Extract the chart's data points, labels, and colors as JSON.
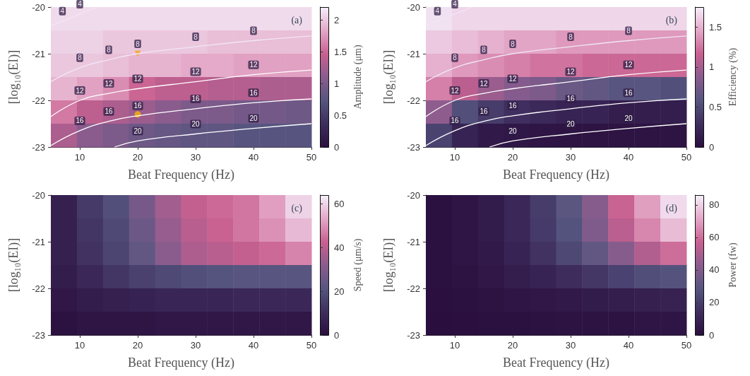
{
  "chart_data": [
    {
      "type": "heatmap",
      "title": "(a)",
      "xlabel": "Beat Frequency (Hz)",
      "ylabel": "[log₁₀(EI)]",
      "clabel": "Amplitude (μm)",
      "xlim": [
        5,
        50
      ],
      "xticks": [
        10,
        20,
        30,
        40,
        50
      ],
      "ylim": [
        -23,
        -20
      ],
      "yticks": [
        -20,
        -21,
        -22,
        -23
      ],
      "clim": [
        0,
        2.2
      ],
      "cticks": [
        0,
        0.5,
        1,
        1.5,
        2
      ],
      "x": [
        7.25,
        11.75,
        16.25,
        20.75,
        25.25,
        29.75,
        34.25,
        38.75,
        43.25,
        47.75
      ],
      "cells": [
        [
          2.1,
          2.1,
          2.1,
          2.1,
          2.1,
          2.1,
          2.1,
          2.1,
          2.1,
          2.1
        ],
        [
          2.05,
          2.05,
          2.0,
          2.0,
          2.0,
          2.0,
          1.95,
          1.95,
          1.95,
          1.95
        ],
        [
          2.0,
          2.0,
          1.95,
          1.9,
          1.9,
          1.85,
          1.85,
          1.8,
          1.8,
          1.8
        ],
        [
          1.9,
          1.8,
          1.7,
          1.5,
          1.4,
          1.4,
          1.35,
          1.35,
          1.3,
          1.3
        ],
        [
          1.6,
          1.4,
          1.3,
          1.2,
          1.1,
          1.0,
          1.0,
          0.95,
          0.95,
          0.9
        ],
        [
          1.3,
          1.1,
          1.0,
          0.9,
          0.85,
          0.8,
          0.8,
          0.75,
          0.75,
          0.75
        ]
      ],
      "series": [
        {
          "type": "line",
          "name": "4",
          "color": "#f0e6f5",
          "x": [
            5,
            7,
            10,
            13
          ],
          "values": [
            -20.4,
            -20.3,
            -20.15,
            -20
          ]
        },
        {
          "type": "line",
          "name": "8",
          "color": "#f0e6f5",
          "x": [
            5,
            10,
            15,
            20,
            30,
            40,
            50
          ],
          "values": [
            -21.6,
            -21.3,
            -21.13,
            -21.0,
            -20.85,
            -20.72,
            -20.62
          ]
        },
        {
          "type": "line",
          "name": "12",
          "color": "#ffffff",
          "x": [
            5,
            10,
            15,
            20,
            30,
            40,
            50
          ],
          "values": [
            -22.35,
            -22.0,
            -21.85,
            -21.75,
            -21.6,
            -21.45,
            -21.35
          ]
        },
        {
          "type": "line",
          "name": "16",
          "color": "#ffffff",
          "x": [
            5,
            10,
            15,
            20,
            30,
            40,
            50
          ],
          "values": [
            -22.97,
            -22.65,
            -22.45,
            -22.33,
            -22.18,
            -22.05,
            -21.97
          ]
        },
        {
          "type": "line",
          "name": "20",
          "color": "#ffffff",
          "x": [
            16,
            20,
            30,
            40,
            50
          ],
          "values": [
            -23.0,
            -22.87,
            -22.72,
            -22.6,
            -22.5
          ]
        },
        {
          "type": "scatter",
          "marker": "triangle",
          "color": "#f5a623",
          "x": [
            20
          ],
          "values": [
            -21
          ]
        },
        {
          "type": "scatter",
          "marker": "circle",
          "color": "#f5b800",
          "x": [
            20
          ],
          "values": [
            -22.3
          ]
        }
      ]
    },
    {
      "type": "heatmap",
      "title": "(b)",
      "xlabel": "Beat Frequency (Hz)",
      "ylabel": "[log₁₀(EI)]",
      "clabel": "Efficiency (%)",
      "xlim": [
        5,
        50
      ],
      "xticks": [
        10,
        20,
        30,
        40,
        50
      ],
      "ylim": [
        -23,
        -20
      ],
      "yticks": [
        -20,
        -21,
        -22,
        -23
      ],
      "clim": [
        0,
        1.75
      ],
      "cticks": [
        0,
        0.5,
        1,
        1.5
      ],
      "x": [
        7.25,
        11.75,
        16.25,
        20.75,
        25.25,
        29.75,
        34.25,
        38.75,
        43.25,
        47.75
      ],
      "cells": [
        [
          1.7,
          1.65,
          1.65,
          1.65,
          1.65,
          1.65,
          1.65,
          1.65,
          1.65,
          1.65
        ],
        [
          1.6,
          1.55,
          1.5,
          1.45,
          1.45,
          1.4,
          1.4,
          1.4,
          1.4,
          1.4
        ],
        [
          1.5,
          1.4,
          1.35,
          1.3,
          1.25,
          1.25,
          1.2,
          1.2,
          1.2,
          1.2
        ],
        [
          1.3,
          1.1,
          0.95,
          0.85,
          0.8,
          0.7,
          0.65,
          0.6,
          0.6,
          0.55
        ],
        [
          0.9,
          0.55,
          0.4,
          0.3,
          0.25,
          0.2,
          0.2,
          0.15,
          0.15,
          0.15
        ],
        [
          0.45,
          0.2,
          0.1,
          0.08,
          0.06,
          0.05,
          0.05,
          0.05,
          0.05,
          0.05
        ]
      ],
      "series": [
        {
          "type": "line",
          "name": "4",
          "color": "#f0e6f5",
          "x": [
            5,
            7,
            10,
            13
          ],
          "values": [
            -20.4,
            -20.3,
            -20.15,
            -20
          ]
        },
        {
          "type": "line",
          "name": "8",
          "color": "#f0e6f5",
          "x": [
            5,
            10,
            15,
            20,
            30,
            40,
            50
          ],
          "values": [
            -21.6,
            -21.3,
            -21.13,
            -21.0,
            -20.85,
            -20.72,
            -20.62
          ]
        },
        {
          "type": "line",
          "name": "12",
          "color": "#ffffff",
          "x": [
            5,
            10,
            15,
            20,
            30,
            40,
            50
          ],
          "values": [
            -22.35,
            -22.0,
            -21.85,
            -21.75,
            -21.6,
            -21.45,
            -21.35
          ]
        },
        {
          "type": "line",
          "name": "16",
          "color": "#ffffff",
          "x": [
            5,
            10,
            15,
            20,
            30,
            40,
            50
          ],
          "values": [
            -22.97,
            -22.65,
            -22.45,
            -22.33,
            -22.18,
            -22.05,
            -21.97
          ]
        },
        {
          "type": "line",
          "name": "20",
          "color": "#ffffff",
          "x": [
            16,
            20,
            30,
            40,
            50
          ],
          "values": [
            -23.0,
            -22.87,
            -22.72,
            -22.6,
            -22.5
          ]
        }
      ]
    },
    {
      "type": "heatmap",
      "title": "(c)",
      "xlabel": "Beat Frequency (Hz)",
      "ylabel": "[log₁₀(EI)]",
      "clabel": "Speed (μm/s)",
      "xlim": [
        5,
        50
      ],
      "xticks": [
        10,
        20,
        30,
        40,
        50
      ],
      "ylim": [
        -23,
        -20
      ],
      "yticks": [
        -20,
        -21,
        -22,
        -23
      ],
      "clim": [
        0,
        64
      ],
      "cticks": [
        0,
        20,
        40,
        60
      ],
      "x": [
        7.25,
        11.75,
        16.25,
        20.75,
        25.25,
        29.75,
        34.25,
        38.75,
        43.25,
        47.75
      ],
      "cells": [
        [
          6,
          14,
          20,
          28,
          36,
          42,
          44,
          46,
          52,
          60
        ],
        [
          6,
          13,
          18,
          26,
          34,
          40,
          43,
          46,
          50,
          56
        ],
        [
          6,
          12,
          17,
          24,
          32,
          38,
          40,
          42,
          44,
          48
        ],
        [
          5,
          9,
          13,
          16,
          18,
          20,
          21,
          22,
          22,
          22
        ],
        [
          3,
          5,
          6,
          7,
          8,
          8,
          8,
          9,
          9,
          9
        ],
        [
          1,
          2,
          2,
          2,
          3,
          3,
          3,
          3,
          3,
          3
        ]
      ]
    },
    {
      "type": "heatmap",
      "title": "(d)",
      "xlabel": "Beat Frequency (Hz)",
      "ylabel": "[log₁₀(EI)]",
      "clabel": "Power (fw)",
      "xlim": [
        5,
        50
      ],
      "xticks": [
        10,
        20,
        30,
        40,
        50
      ],
      "ylim": [
        -23,
        -20
      ],
      "yticks": [
        -20,
        -21,
        -22,
        -23
      ],
      "clim": [
        0,
        86
      ],
      "cticks": [
        0,
        20,
        40,
        60,
        80
      ],
      "x": [
        7.25,
        11.75,
        16.25,
        20.75,
        25.25,
        29.75,
        34.25,
        38.75,
        43.25,
        47.75
      ],
      "cells": [
        [
          1,
          3,
          6,
          12,
          20,
          30,
          42,
          58,
          70,
          82
        ],
        [
          1,
          3,
          6,
          12,
          19,
          28,
          40,
          54,
          65,
          76
        ],
        [
          1,
          3,
          5,
          10,
          16,
          24,
          32,
          42,
          52,
          60
        ],
        [
          1,
          2,
          4,
          7,
          10,
          14,
          18,
          22,
          26,
          28
        ],
        [
          0.5,
          1,
          2,
          3,
          4,
          5,
          6,
          7,
          8,
          9
        ],
        [
          0.2,
          0.5,
          1,
          1,
          1.5,
          2,
          2,
          2,
          3,
          3
        ]
      ]
    }
  ]
}
